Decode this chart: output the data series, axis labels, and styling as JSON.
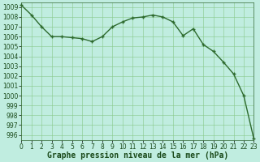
{
  "x": [
    0,
    1,
    2,
    3,
    4,
    5,
    6,
    7,
    8,
    9,
    10,
    11,
    12,
    13,
    14,
    15,
    16,
    17,
    18,
    19,
    20,
    21,
    22,
    23
  ],
  "y": [
    1009.2,
    1008.2,
    1007.0,
    1006.0,
    1006.0,
    1005.9,
    1005.8,
    1005.5,
    1006.0,
    1007.0,
    1007.5,
    1007.9,
    1008.0,
    1008.2,
    1008.0,
    1007.5,
    1006.1,
    1006.8,
    1005.2,
    1004.5,
    1003.4,
    1002.2,
    1000.0,
    995.6
  ],
  "ylim": [
    995.5,
    1009.5
  ],
  "xlim": [
    0,
    23
  ],
  "yticks": [
    996,
    997,
    998,
    999,
    1000,
    1001,
    1002,
    1003,
    1004,
    1005,
    1006,
    1007,
    1008,
    1009
  ],
  "xticks": [
    0,
    1,
    2,
    3,
    4,
    5,
    6,
    7,
    8,
    9,
    10,
    11,
    12,
    13,
    14,
    15,
    16,
    17,
    18,
    19,
    20,
    21,
    22,
    23
  ],
  "line_color": "#2d6a2d",
  "marker_color": "#2d6a2d",
  "bg_color": "#c0ede0",
  "grid_color": "#88c888",
  "border_color": "#336633",
  "xlabel": "Graphe pression niveau de la mer (hPa)",
  "xlabel_color": "#1a4a1a",
  "tick_color": "#1a4a1a",
  "axis_label_fontsize": 7,
  "tick_fontsize": 5.5,
  "line_width": 1.0,
  "marker_size": 3.5,
  "marker_style": "+"
}
